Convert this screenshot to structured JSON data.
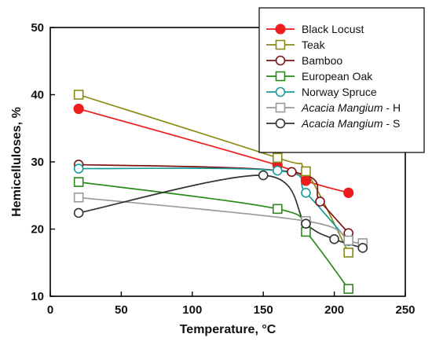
{
  "chart_data": {
    "type": "line",
    "xlabel": "Temperature, °C",
    "ylabel": "Hemicelluloses, %",
    "xlim": [
      0,
      250
    ],
    "ylim": [
      10,
      50
    ],
    "xticks": [
      0,
      50,
      100,
      150,
      200,
      250
    ],
    "yticks": [
      10,
      20,
      30,
      40,
      50
    ],
    "grid": false,
    "legend_position": "top-right",
    "series": [
      {
        "name": "Black Locust",
        "italic_part": "",
        "suffix": "",
        "color": "#ee1c1c",
        "marker": "filled-circle",
        "x": [
          20,
          160,
          180,
          210
        ],
        "y": [
          37.9,
          29.5,
          27.2,
          25.4
        ]
      },
      {
        "name": "Teak",
        "italic_part": "",
        "suffix": "",
        "color": "#8a8a14",
        "marker": "open-square",
        "x": [
          20,
          160,
          180,
          210
        ],
        "y": [
          40.0,
          30.6,
          28.6,
          16.5
        ]
      },
      {
        "name": "Bamboo",
        "italic_part": "",
        "suffix": "",
        "color": "#7a1515",
        "marker": "open-circle",
        "x": [
          20,
          170,
          190,
          210
        ],
        "y": [
          29.6,
          28.5,
          24.1,
          19.4
        ]
      },
      {
        "name": "European Oak",
        "italic_part": "",
        "suffix": "",
        "color": "#2a8a1a",
        "marker": "open-square",
        "x": [
          20,
          160,
          180,
          210
        ],
        "y": [
          27.0,
          23.0,
          19.6,
          11.1
        ]
      },
      {
        "name": "Norway Spruce",
        "italic_part": "",
        "suffix": "",
        "color": "#1a9a9a",
        "marker": "open-circle",
        "x": [
          20,
          160,
          180,
          210
        ],
        "y": [
          29.0,
          28.7,
          25.4,
          18.2
        ]
      },
      {
        "name": "Acacia Mangium - H",
        "italic_part": "Acacia Mangium",
        "suffix": " - H",
        "color": "#9a9a9a",
        "marker": "open-square",
        "x": [
          20,
          180,
          210,
          220
        ],
        "y": [
          24.7,
          21.2,
          18.3,
          17.9
        ]
      },
      {
        "name": "Acacia Mangium - S",
        "italic_part": "Acacia Mangium",
        "suffix": " - S",
        "color": "#333333",
        "marker": "open-circle",
        "x": [
          20,
          150,
          180,
          200,
          220
        ],
        "y": [
          22.4,
          28.0,
          20.8,
          18.5,
          17.2
        ]
      }
    ]
  }
}
